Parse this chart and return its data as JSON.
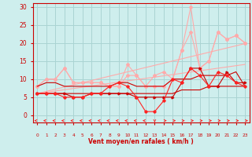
{
  "x": [
    0,
    1,
    2,
    3,
    4,
    5,
    6,
    7,
    8,
    9,
    10,
    11,
    12,
    13,
    14,
    15,
    16,
    17,
    18,
    19,
    20,
    21,
    22,
    23
  ],
  "background_color": "#ceeeed",
  "grid_color": "#aad4d3",
  "line_color_dark_red": "#cc0000",
  "line_color_red": "#ff2222",
  "line_color_light_red": "#ffaaaa",
  "xlabel": "Vent moyen/en rafales ( km/h )",
  "ylim": [
    -2,
    31
  ],
  "xlim": [
    -0.5,
    23.5
  ],
  "yticks": [
    0,
    5,
    10,
    15,
    20,
    25,
    30
  ],
  "series": {
    "trend1": [
      6.0,
      6.6,
      7.2,
      7.8,
      8.4,
      9.0,
      9.6,
      10.2,
      10.8,
      11.4,
      12.0,
      12.6,
      13.2,
      13.8,
      14.4,
      15.0,
      15.6,
      16.2,
      16.8,
      17.4,
      18.0,
      18.6,
      19.2,
      19.8
    ],
    "trend2": [
      6.0,
      6.35,
      6.7,
      7.05,
      7.4,
      7.75,
      8.1,
      8.45,
      8.8,
      9.15,
      9.5,
      9.85,
      10.2,
      10.55,
      10.9,
      11.25,
      11.6,
      11.95,
      12.3,
      12.65,
      13.0,
      13.35,
      13.7,
      14.05
    ],
    "line_flatbase": [
      6,
      6,
      6,
      6,
      6,
      6,
      6,
      6,
      6,
      6,
      6,
      6,
      6,
      6,
      6,
      6,
      7,
      7,
      7,
      8,
      8,
      8,
      8,
      8
    ],
    "line_darkred_markers": [
      6,
      6,
      6,
      6,
      5,
      5,
      6,
      6,
      6,
      6,
      6,
      5,
      5,
      5,
      5,
      5,
      9,
      13,
      13,
      8,
      8,
      12,
      9,
      9
    ],
    "line_red_dip": [
      6,
      6,
      6,
      5,
      5,
      5,
      6,
      6,
      8,
      9,
      8,
      5,
      1,
      1,
      4,
      10,
      9,
      13,
      11,
      8,
      12,
      11,
      9,
      8
    ],
    "line_darkred_upper": [
      8,
      9,
      9,
      8,
      8,
      8,
      8,
      8,
      8,
      9,
      9,
      8,
      8,
      8,
      8,
      10,
      10,
      10,
      11,
      11,
      11,
      11,
      12,
      8
    ],
    "line_light1": [
      8,
      10,
      10,
      13,
      9,
      9,
      9,
      9,
      8,
      8,
      11,
      11,
      8,
      8,
      8,
      10,
      18,
      23,
      13,
      15,
      23,
      21,
      22,
      20
    ],
    "line_light2": [
      8,
      10,
      10,
      13,
      9,
      9,
      9,
      9,
      8,
      8,
      14,
      11,
      8,
      11,
      12,
      10,
      18,
      30,
      13,
      15,
      23,
      21,
      22,
      20
    ]
  }
}
